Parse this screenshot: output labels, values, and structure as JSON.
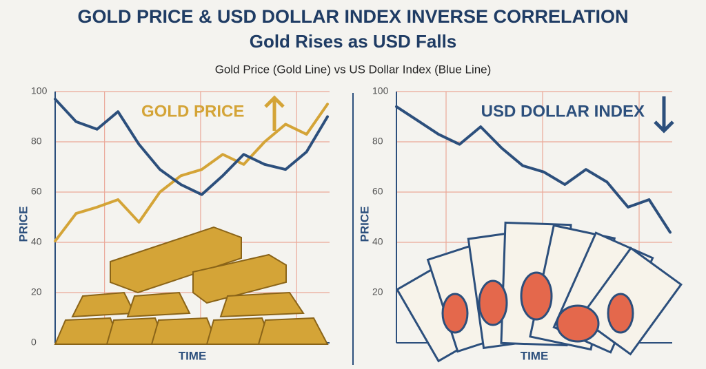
{
  "title": "GOLD PRICE & USD DOLLAR INDEX INVERSE CORRELATION",
  "subtitle": "Gold Rises as USD Falls",
  "caption": "Gold Price (Gold Line) vs US Dollar Index (Blue Line)",
  "chart_data": [
    {
      "type": "line",
      "annotation": "GOLD PRICE",
      "y_label": "PRICE",
      "x_label": "TIME",
      "ylim": [
        0,
        100
      ],
      "yticks": [
        0,
        20,
        40,
        60,
        80,
        100
      ],
      "grid": true,
      "series": [
        {
          "color": "#d4a437",
          "values": [
            40.5,
            51.5,
            54,
            57,
            48,
            60,
            66.5,
            69,
            75,
            71,
            80,
            87,
            83,
            95
          ]
        },
        {
          "color": "#2c4f7c",
          "values": [
            97,
            88,
            85,
            92,
            79,
            69,
            63,
            59,
            66.5,
            75,
            71,
            69,
            76,
            90
          ]
        }
      ]
    },
    {
      "type": "line",
      "annotation": "USD DOLLAR INDEX",
      "y_label": "PRICE",
      "x_label": "TIME",
      "ylim": [
        0,
        100
      ],
      "yticks": [
        20,
        40,
        60,
        80,
        100
      ],
      "grid": true,
      "series": [
        {
          "color": "#2c4f7c",
          "values": [
            94,
            88.5,
            83,
            79,
            86,
            77.5,
            70.5,
            68,
            63,
            69,
            64,
            54,
            57,
            44
          ]
        }
      ]
    }
  ]
}
